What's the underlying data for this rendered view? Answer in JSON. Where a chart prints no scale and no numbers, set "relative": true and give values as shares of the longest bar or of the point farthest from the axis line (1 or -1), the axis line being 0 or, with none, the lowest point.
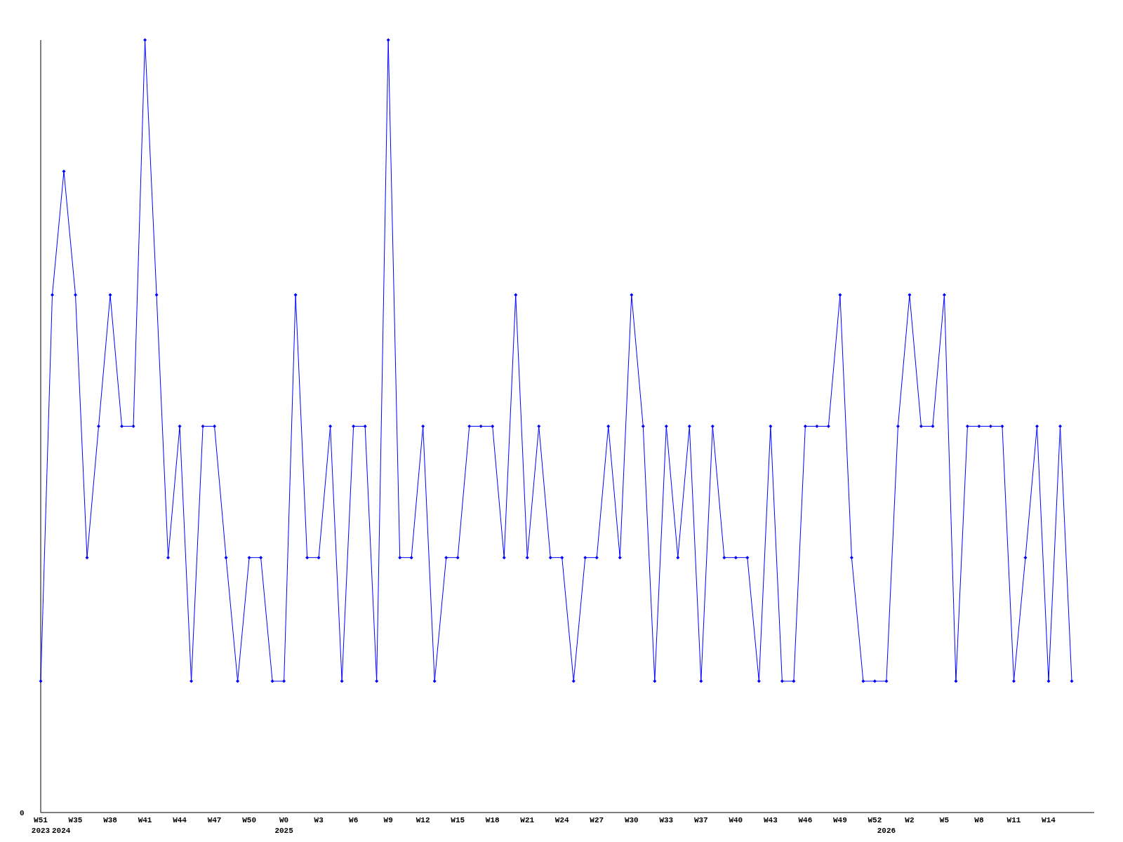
{
  "chart_data": {
    "type": "line",
    "relative": true,
    "color": "#0000ff",
    "marker": "diamond",
    "line_style": "solid",
    "annotations": [
      "0",
      "2024"
    ],
    "categories": [
      "W51\n2023",
      null,
      null,
      "W35",
      null,
      null,
      "W38",
      null,
      null,
      "W41",
      null,
      null,
      "W44",
      null,
      null,
      "W47",
      null,
      null,
      "W50",
      null,
      null,
      "W0\n2025",
      null,
      null,
      "W3",
      null,
      null,
      "W6",
      null,
      null,
      "W9",
      null,
      null,
      "W12",
      null,
      null,
      "W15",
      null,
      null,
      "W18",
      null,
      null,
      "W21",
      null,
      null,
      "W24",
      null,
      null,
      "W27",
      null,
      null,
      "W30",
      null,
      null,
      "W33",
      null,
      null,
      "W37",
      null,
      null,
      "W40",
      null,
      null,
      "W43",
      null,
      null,
      "W46",
      null,
      null,
      "W49",
      null,
      null,
      "W52",
      "\n2026",
      null,
      "W2",
      null,
      null,
      "W5",
      null,
      null,
      "W8",
      null,
      null,
      "W11",
      null,
      null,
      "W14",
      null,
      null
    ],
    "values": [
      0.17,
      0.67,
      0.83,
      0.67,
      0.33,
      0.5,
      0.67,
      0.5,
      0.5,
      1,
      0.67,
      0.33,
      0.5,
      0.17,
      0.5,
      0.5,
      0.33,
      0.17,
      0.33,
      0.33,
      0.17,
      0.17,
      0.67,
      0.33,
      0.33,
      0.5,
      0.17,
      0.5,
      0.5,
      0.17,
      1,
      0.33,
      0.33,
      0.5,
      0.17,
      0.33,
      0.33,
      0.5,
      0.5,
      0.5,
      0.33,
      0.67,
      0.33,
      0.5,
      0.33,
      0.33,
      0.17,
      0.33,
      0.33,
      0.5,
      0.33,
      0.67,
      0.5,
      0.17,
      0.5,
      0.33,
      0.5,
      0.17,
      0.5,
      0.33,
      0.33,
      0.33,
      0.17,
      0.5,
      0.17,
      0.17,
      0.5,
      0.5,
      0.5,
      0.67,
      0.33,
      0.17,
      0.17,
      0.17,
      0.5,
      0.67,
      0.5,
      0.5,
      0.67,
      0.17,
      0.5,
      0.5,
      0.5,
      0.5,
      0.17,
      0.33,
      0.5,
      0.17,
      0.5,
      0.17
    ]
  }
}
